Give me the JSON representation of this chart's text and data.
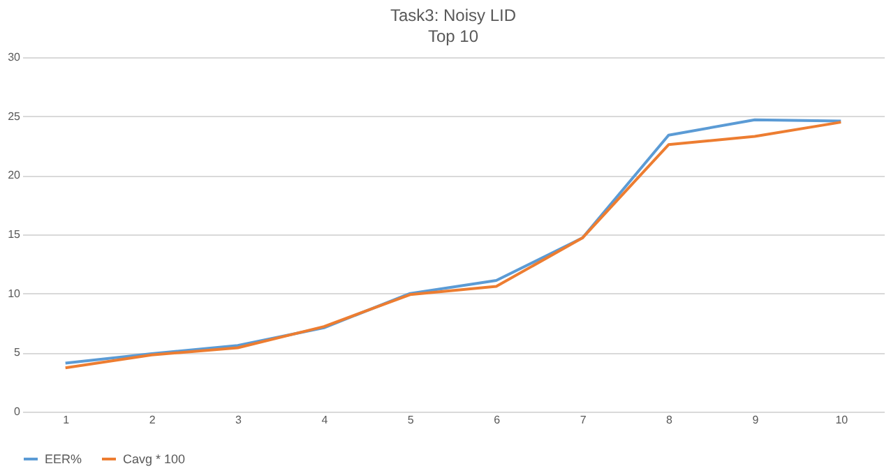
{
  "chart_data": {
    "type": "line",
    "title": "Task3: Noisy LID",
    "subtitle": "Top 10",
    "categories": [
      "1",
      "2",
      "3",
      "4",
      "5",
      "6",
      "7",
      "8",
      "9",
      "10"
    ],
    "series": [
      {
        "name": "EER%",
        "color": "#5b9bd5",
        "values": [
          4.1,
          4.9,
          5.6,
          7.1,
          10.0,
          11.1,
          14.7,
          23.4,
          24.7,
          24.6
        ]
      },
      {
        "name": "Cavg * 100",
        "color": "#ed7d31",
        "values": [
          3.7,
          4.8,
          5.4,
          7.2,
          9.9,
          10.6,
          14.7,
          22.6,
          23.3,
          24.5
        ]
      }
    ],
    "ylim": [
      0,
      30
    ],
    "yticks": [
      0,
      5,
      10,
      15,
      20,
      25,
      30
    ],
    "grid": "y",
    "legend": "bottom",
    "marker": "none",
    "line_style": "solid"
  }
}
